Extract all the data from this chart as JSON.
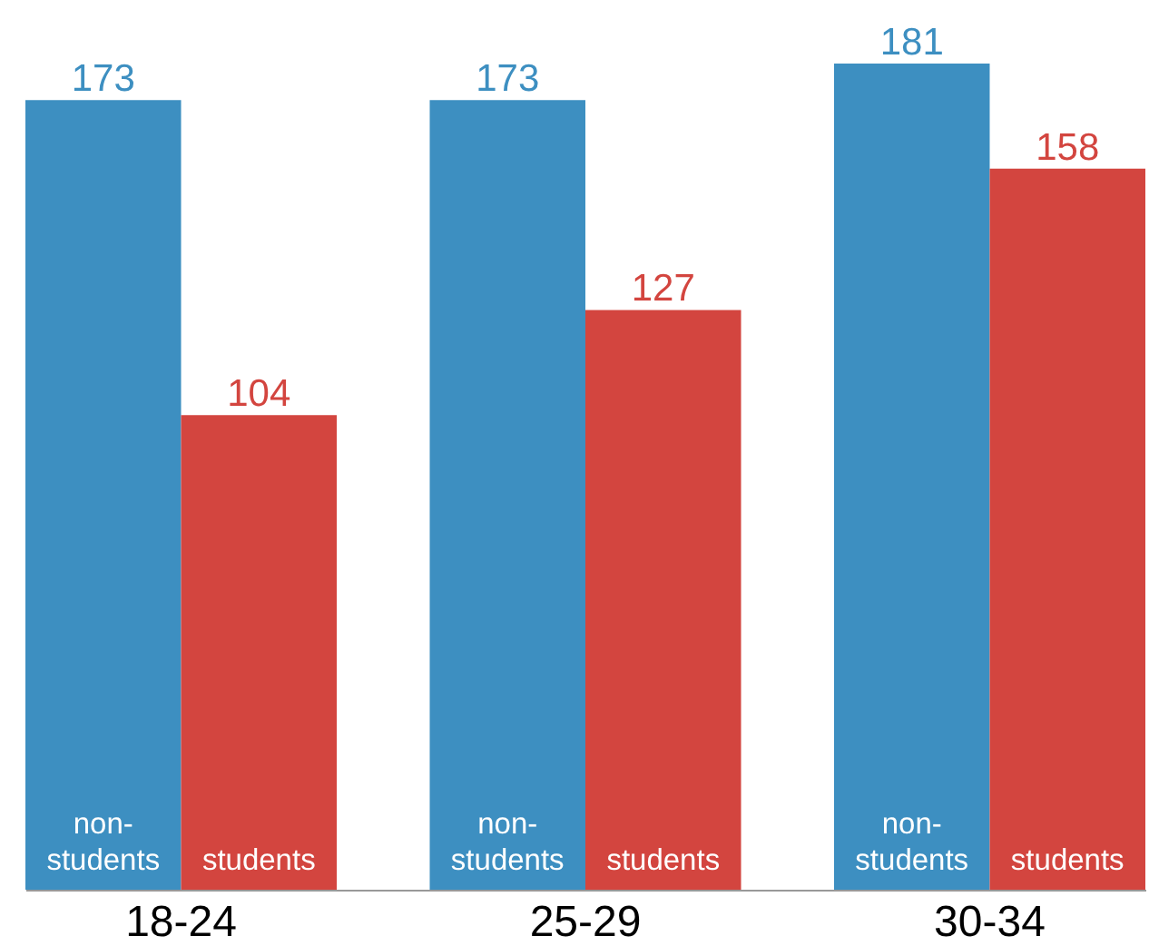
{
  "chart_data": {
    "type": "bar",
    "categories": [
      "18-24",
      "25-29",
      "30-34"
    ],
    "series": [
      {
        "name": "non-students",
        "color": "#3d8fc1",
        "values": [
          173,
          173,
          181
        ]
      },
      {
        "name": "students",
        "color": "#d3453f",
        "values": [
          104,
          127,
          158
        ]
      }
    ],
    "data_labels": true,
    "legend": false
  }
}
